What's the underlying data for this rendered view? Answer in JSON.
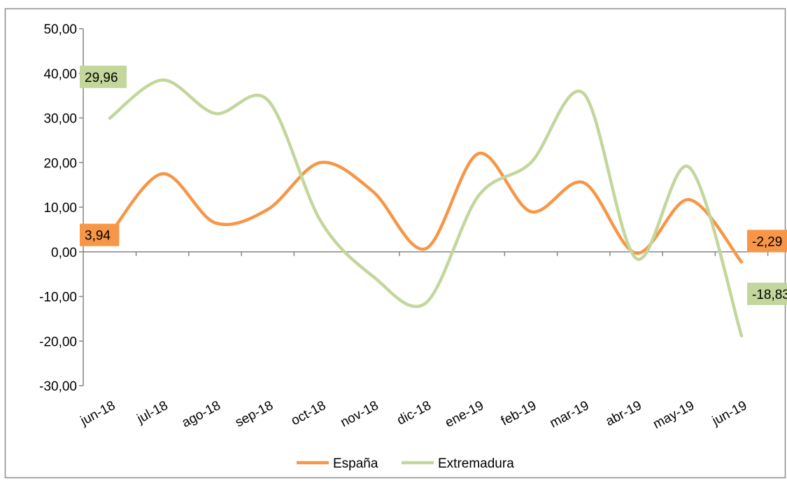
{
  "chart_data": {
    "type": "line",
    "title": "",
    "xlabel": "",
    "ylabel": "",
    "categories": [
      "jun-18",
      "jul-18",
      "ago-18",
      "sep-18",
      "oct-18",
      "nov-18",
      "dic-18",
      "ene-19",
      "feb-19",
      "mar-19",
      "abr-19",
      "may-19",
      "jun-19"
    ],
    "ylim": [
      -30,
      50
    ],
    "yticks": [
      "50,00",
      "40,00",
      "30,00",
      "20,00",
      "10,00",
      "0,00",
      "-10,00",
      "-20,00",
      "-30,00"
    ],
    "grid": false,
    "legend_position": "bottom",
    "smooth": true,
    "series": [
      {
        "name": "España",
        "color": "#F79646",
        "values": [
          3.94,
          17.5,
          6.5,
          9.5,
          20.0,
          13.5,
          0.7,
          22.0,
          9.0,
          15.5,
          -0.3,
          11.7,
          -2.29
        ]
      },
      {
        "name": "Extremadura",
        "color": "#C3D69B",
        "values": [
          29.96,
          38.5,
          31.0,
          34.0,
          7.0,
          -5.5,
          -11.5,
          12.5,
          20.0,
          35.5,
          -1.5,
          19.0,
          -18.83
        ]
      }
    ],
    "data_labels": [
      {
        "series": "España",
        "point": "first",
        "text": "3,94"
      },
      {
        "series": "Extremadura",
        "point": "first",
        "text": "29,96"
      },
      {
        "series": "España",
        "point": "last",
        "text": "-2,29"
      },
      {
        "series": "Extremadura",
        "point": "last",
        "text": "-18,83"
      }
    ]
  }
}
